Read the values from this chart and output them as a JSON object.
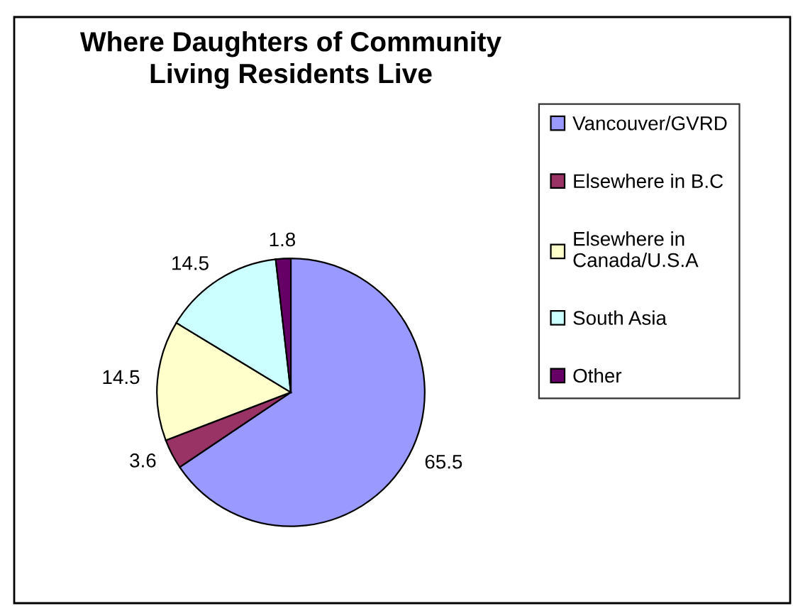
{
  "chart_data": {
    "type": "pie",
    "title": "Where Daughters of Community\nLiving Residents Live",
    "categories": [
      "Vancouver/GVRD",
      "Elsewhere in B.C",
      "Elsewhere in\nCanada/U.S.A",
      "South Asia",
      "Other"
    ],
    "values": [
      65.5,
      3.6,
      14.5,
      14.5,
      1.8
    ],
    "colors": [
      "#9999ff",
      "#993366",
      "#ffffcc",
      "#ccffff",
      "#660066"
    ],
    "data_labels": true,
    "legend": "right"
  }
}
